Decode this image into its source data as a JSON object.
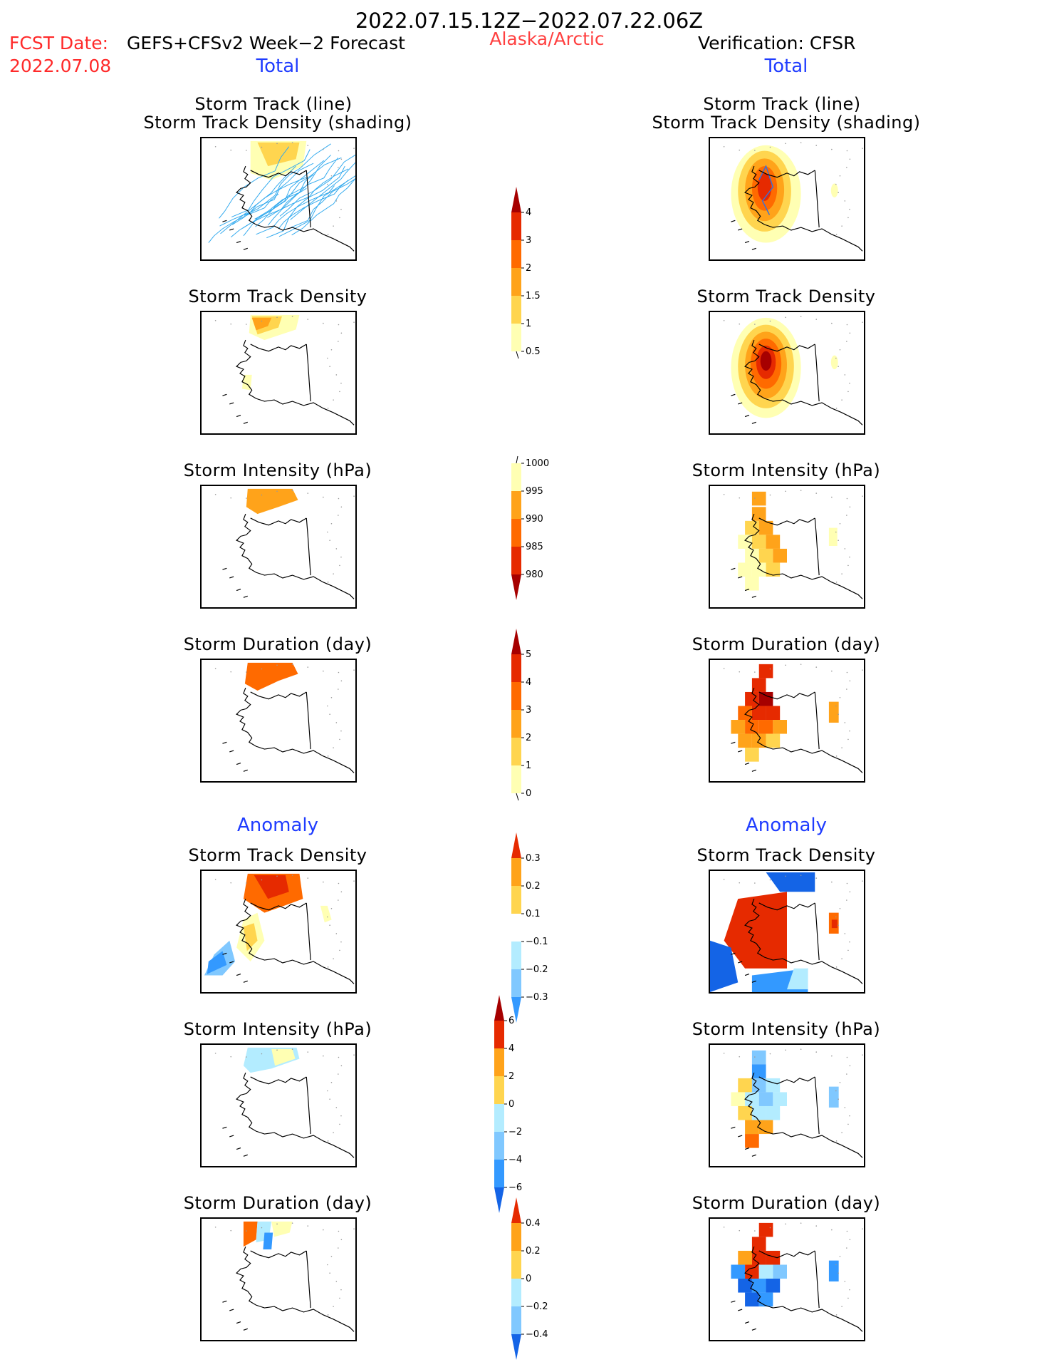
{
  "header": {
    "date_range": "2022.07.15.12Z−2022.07.22.06Z",
    "region": "Alaska/Arctic",
    "fcst_label": "FCST Date:",
    "fcst_model": "GEFS+CFSv2 Week−2 Forecast",
    "fcst_date": "2022.07.08",
    "verification": "Verification: CFSR",
    "left_total": "Total",
    "right_total": "Total",
    "left_anomaly": "Anomaly",
    "right_anomaly": "Anomaly"
  },
  "panel_titles": {
    "track_line": "Storm Track (line)",
    "track_shading": "Storm Track Density (shading)",
    "density": "Storm Track Density",
    "intensity": "Storm Intensity (hPa)",
    "duration": "Storm Duration (day)"
  },
  "colors": {
    "pale_yellow": "#ffffb3",
    "light_orange": "#ffd54f",
    "orange": "#ffa31a",
    "dark_orange": "#ff6a00",
    "red": "#e62a00",
    "dark_red": "#a60000",
    "light_cyan": "#b3ecff",
    "light_blue": "#80c8ff",
    "blue": "#3399ff",
    "dark_blue": "#1464e6",
    "track_line": "#33aaee"
  },
  "chart_data": [
    {
      "type": "heatmap",
      "panel": "forecast-total-track",
      "title": "Storm Track (line) Storm Track Density (shading)",
      "colorbar": "density"
    },
    {
      "type": "heatmap",
      "panel": "verification-total-track",
      "title": "Storm Track (line) Storm Track Density (shading)",
      "colorbar": "density"
    },
    {
      "type": "heatmap",
      "panel": "forecast-total-density",
      "title": "Storm Track Density",
      "colorbar": "density"
    },
    {
      "type": "heatmap",
      "panel": "verification-total-density",
      "title": "Storm Track Density",
      "colorbar": "density"
    },
    {
      "type": "heatmap",
      "panel": "forecast-total-intensity",
      "title": "Storm Intensity (hPa)",
      "colorbar": "intensity"
    },
    {
      "type": "heatmap",
      "panel": "verification-total-intensity",
      "title": "Storm Intensity (hPa)",
      "colorbar": "intensity"
    },
    {
      "type": "heatmap",
      "panel": "forecast-total-duration",
      "title": "Storm Duration (day)",
      "colorbar": "duration"
    },
    {
      "type": "heatmap",
      "panel": "verification-total-duration",
      "title": "Storm Duration (day)",
      "colorbar": "duration"
    },
    {
      "type": "heatmap",
      "panel": "forecast-anom-density",
      "title": "Storm Track Density",
      "colorbar": "anom_density"
    },
    {
      "type": "heatmap",
      "panel": "verification-anom-density",
      "title": "Storm Track Density",
      "colorbar": "anom_density"
    },
    {
      "type": "heatmap",
      "panel": "forecast-anom-intensity",
      "title": "Storm Intensity (hPa)",
      "colorbar": "anom_intensity"
    },
    {
      "type": "heatmap",
      "panel": "verification-anom-intensity",
      "title": "Storm Intensity (hPa)",
      "colorbar": "anom_intensity"
    },
    {
      "type": "heatmap",
      "panel": "forecast-anom-duration",
      "title": "Storm Duration (day)",
      "colorbar": "anom_duration"
    },
    {
      "type": "heatmap",
      "panel": "verification-anom-duration",
      "title": "Storm Duration (day)",
      "colorbar": "anom_duration"
    }
  ],
  "colorbars": {
    "density": {
      "labels": [
        "4",
        "3",
        "2",
        "1.5",
        "1",
        "0.5"
      ]
    },
    "intensity": {
      "labels": [
        "1000",
        "995",
        "990",
        "985",
        "980"
      ]
    },
    "duration": {
      "labels": [
        "5",
        "4",
        "3",
        "2",
        "1",
        "0"
      ]
    },
    "anom_density": {
      "labels": [
        "0.3",
        "0.2",
        "0.1",
        "−0.1",
        "−0.2",
        "−0.3"
      ]
    },
    "anom_intensity": {
      "labels": [
        "6",
        "4",
        "2",
        "0",
        "−2",
        "−4",
        "−6"
      ]
    },
    "anom_duration": {
      "labels": [
        "0.4",
        "0.2",
        "0",
        "−0.2",
        "−0.4"
      ]
    }
  }
}
